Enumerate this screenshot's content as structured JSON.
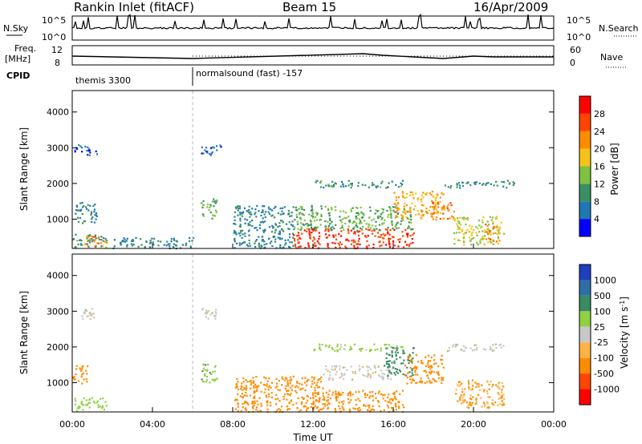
{
  "header": {
    "station": "Rankin Inlet (fitACF)",
    "beam": "Beam 15",
    "date": "16/Apr/2009"
  },
  "panels": {
    "nsky_label": "N.Sky",
    "nsky_ticks": [
      "10^5",
      "10^0"
    ],
    "nsearch_label": "N.Search",
    "nsearch_ticks": [
      "10^5",
      "10^0"
    ],
    "freq_label_1": "Freq.",
    "freq_label_2": "[MHz]",
    "freq_ticks": [
      "12",
      "8"
    ],
    "nave_label": "Nave",
    "nave_ticks": [
      "60",
      "0"
    ],
    "cpid_label": "CPID",
    "cpid_1": "themis 3300",
    "cpid_2": "normalsound (fast) -157"
  },
  "colors": {
    "power": [
      "#0000ff",
      "#1f78b4",
      "#3a8f64",
      "#7fc241",
      "#f6c21a",
      "#ff8c00",
      "#ff4500",
      "#ff0000"
    ],
    "velocity": [
      "#1f3fbf",
      "#2f6fa8",
      "#3a8a64",
      "#8fd045",
      "#c8c8c8",
      "#ffb347",
      "#ff8c00",
      "#ff4500",
      "#ff0000"
    ]
  },
  "chart_data": [
    {
      "type": "heatmap",
      "name": "power",
      "ylabel": "Slant Range [km]",
      "xlabel": "Time UT",
      "x_ticks": [
        "00:00",
        "04:00",
        "08:00",
        "12:00",
        "16:00",
        "20:00",
        "00:00"
      ],
      "x_range_hours": [
        0,
        24
      ],
      "y_ticks": [
        1000,
        2000,
        3000,
        4000
      ],
      "ylim": [
        180,
        4600
      ],
      "colorbar_label": "Power [dB]",
      "colorbar_ticks": [
        "4",
        "8",
        "12",
        "16",
        "20",
        "24",
        "28"
      ],
      "patches": [
        {
          "t": [
            0.0,
            1.7
          ],
          "r": [
            200,
            600
          ],
          "db": 10
        },
        {
          "t": [
            0.6,
            1.7
          ],
          "r": [
            250,
            550
          ],
          "db": 22
        },
        {
          "t": [
            0.1,
            1.2
          ],
          "r": [
            900,
            1500
          ],
          "db": 8
        },
        {
          "t": [
            0.1,
            1.2
          ],
          "r": [
            2800,
            3100
          ],
          "db": 6
        },
        {
          "t": [
            2.0,
            6.0
          ],
          "r": [
            200,
            500
          ],
          "db": 8
        },
        {
          "t": [
            6.4,
            7.2
          ],
          "r": [
            1000,
            1600
          ],
          "db": 12
        },
        {
          "t": [
            6.4,
            7.4
          ],
          "r": [
            2800,
            3100
          ],
          "db": 6
        },
        {
          "t": [
            8.0,
            11.0
          ],
          "r": [
            200,
            1400
          ],
          "db": 8
        },
        {
          "t": [
            11.0,
            17.0
          ],
          "r": [
            200,
            750
          ],
          "db": 27
        },
        {
          "t": [
            11.0,
            17.0
          ],
          "r": [
            700,
            1400
          ],
          "db": 12
        },
        {
          "t": [
            12.0,
            16.5
          ],
          "r": [
            1900,
            2100
          ],
          "db": 10
        },
        {
          "t": [
            16.0,
            18.5
          ],
          "r": [
            1000,
            1800
          ],
          "db": 20
        },
        {
          "t": [
            17.8,
            19.0
          ],
          "r": [
            1000,
            1500
          ],
          "db": 22
        },
        {
          "t": [
            18.5,
            22.0
          ],
          "r": [
            1900,
            2100
          ],
          "db": 9
        },
        {
          "t": [
            19.0,
            21.5
          ],
          "r": [
            300,
            1100
          ],
          "db": 16
        },
        {
          "t": [
            20.5,
            21.3
          ],
          "r": [
            400,
            900
          ],
          "db": 22
        }
      ]
    },
    {
      "type": "heatmap",
      "name": "velocity",
      "ylabel": "Slant Range [km]",
      "xlabel": "Time UT",
      "x_ticks": [
        "00:00",
        "04:00",
        "08:00",
        "12:00",
        "16:00",
        "20:00",
        "00:00"
      ],
      "x_range_hours": [
        0,
        24
      ],
      "y_ticks": [
        1000,
        2000,
        3000,
        4000
      ],
      "ylim": [
        180,
        4600
      ],
      "colorbar_label": "Velocity [m s^-1]",
      "colorbar_ticks": [
        "1000",
        "500",
        "100",
        "25",
        "-25",
        "-100",
        "-500",
        "-1000"
      ],
      "patches": [
        {
          "t": [
            0.0,
            0.8
          ],
          "r": [
            1000,
            1500
          ],
          "v": -300
        },
        {
          "t": [
            0.1,
            1.7
          ],
          "r": [
            200,
            600
          ],
          "v": 60
        },
        {
          "t": [
            0.4,
            1.2
          ],
          "r": [
            2800,
            3100
          ],
          "v": 0
        },
        {
          "t": [
            6.4,
            7.2
          ],
          "r": [
            1000,
            1600
          ],
          "v": 80
        },
        {
          "t": [
            6.4,
            7.2
          ],
          "r": [
            2800,
            3100
          ],
          "v": 0
        },
        {
          "t": [
            8.0,
            12.5
          ],
          "r": [
            200,
            1200
          ],
          "v": -150
        },
        {
          "t": [
            12.0,
            16.5
          ],
          "r": [
            200,
            800
          ],
          "v": -150
        },
        {
          "t": [
            12.5,
            16.0
          ],
          "r": [
            1100,
            1500
          ],
          "v": 0
        },
        {
          "t": [
            12.0,
            16.5
          ],
          "r": [
            1900,
            2100
          ],
          "v": 50
        },
        {
          "t": [
            15.5,
            17.0
          ],
          "r": [
            1200,
            2000
          ],
          "v": 150
        },
        {
          "t": [
            16.5,
            18.5
          ],
          "r": [
            1000,
            1800
          ],
          "v": -300
        },
        {
          "t": [
            18.5,
            21.5
          ],
          "r": [
            1900,
            2100
          ],
          "v": 0
        },
        {
          "t": [
            19.0,
            21.5
          ],
          "r": [
            300,
            1100
          ],
          "v": -100
        }
      ]
    }
  ]
}
